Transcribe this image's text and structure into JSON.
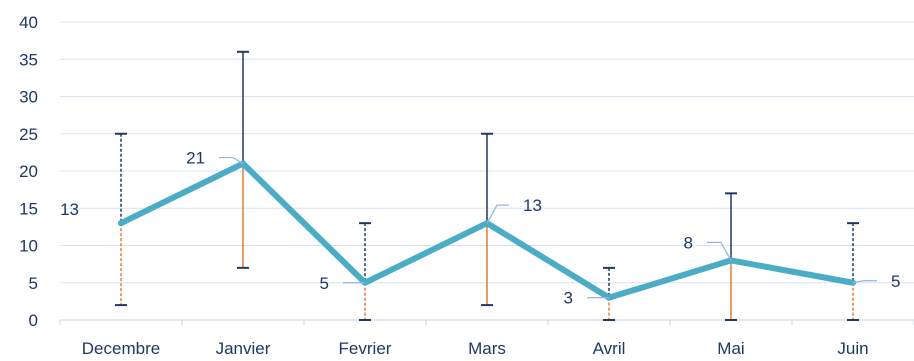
{
  "chart_data": {
    "type": "line",
    "title": "",
    "xlabel": "",
    "ylabel": "",
    "categories": [
      "Decembre",
      "Janvier",
      "Fevrier",
      "Mars",
      "Avril",
      "Mai",
      "Juin"
    ],
    "values": [
      13,
      21,
      5,
      13,
      3,
      8,
      5
    ],
    "data_labels": [
      "13",
      "21",
      "5",
      "13",
      "3",
      "8",
      "5"
    ],
    "error_bars": {
      "low": [
        2,
        7,
        0,
        2,
        0,
        0,
        0
      ],
      "high": [
        25,
        36,
        13,
        25,
        7,
        17,
        13
      ]
    },
    "ylim": [
      0,
      40
    ],
    "yticks": [
      "0",
      "5",
      "10",
      "15",
      "20",
      "25",
      "30",
      "35",
      "40"
    ],
    "grid": true,
    "legend": "none",
    "colors": {
      "line": "#4bacc6",
      "grid": "#d9e1f2",
      "axis_text": "#1f3864",
      "error_upper": "#1f3864",
      "error_lower": "#e07b39",
      "label_leader": "#8fb8de"
    }
  }
}
